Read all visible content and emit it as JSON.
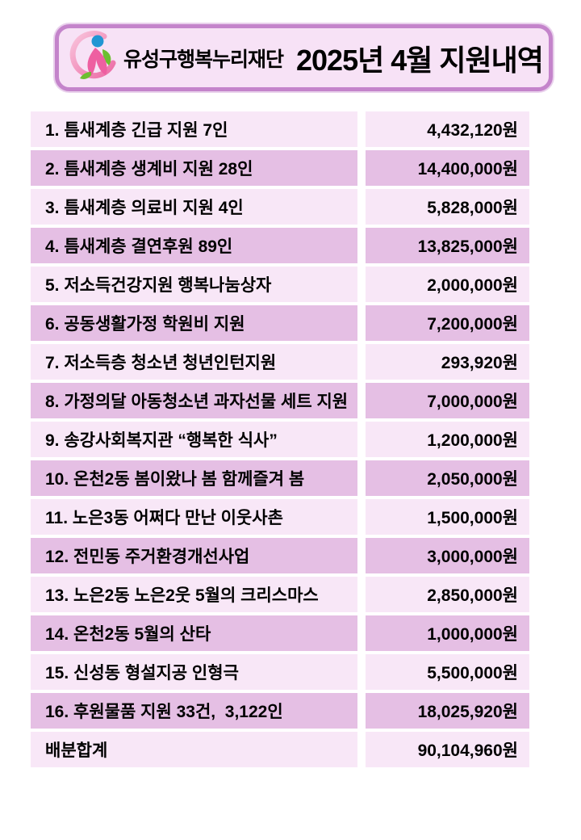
{
  "header": {
    "org_name": "유성구행복누리재단",
    "title": "2025년 4월 지원내역",
    "logo_name": "happiness-nuri-foundation-logo"
  },
  "colors": {
    "page_bg": "#ffffff",
    "header_fill": "#f7e2f6",
    "header_border": "#c484cb",
    "header_glow": "#e9d1ec",
    "row_light": "#f8e7f7",
    "row_dark": "#e5bfe4",
    "text": "#000000",
    "logo_head": "#2196d3",
    "logo_body": "#ee5fa1",
    "logo_leaf": "#6cbf2f",
    "logo_ring_light": "#f9c4dc",
    "logo_ring_dark": "#ec6ba5"
  },
  "table": {
    "rows": [
      {
        "label": "1. 틈새계층 긴급 지원 7인",
        "amount": "4,432,120원"
      },
      {
        "label": "2. 틈새계층 생계비 지원 28인",
        "amount": "14,400,000원"
      },
      {
        "label": "3. 틈새계층 의료비 지원 4인",
        "amount": "5,828,000원"
      },
      {
        "label": "4. 틈새계층 결연후원 89인",
        "amount": "13,825,000원"
      },
      {
        "label": "5. 저소득건강지원 행복나눔상자",
        "amount": "2,000,000원"
      },
      {
        "label": "6. 공동생활가정 학원비 지원",
        "amount": "7,200,000원"
      },
      {
        "label": "7. 저소득층 청소년 청년인턴지원",
        "amount": "293,920원"
      },
      {
        "label": "8. 가정의달 아동청소년 과자선물 세트 지원",
        "amount": "7,000,000원"
      },
      {
        "label": "9. 송강사회복지관 “행복한 식사”",
        "amount": "1,200,000원"
      },
      {
        "label": "10. 온천2동 봄이왔나 봄 함께즐겨 봄",
        "amount": "2,050,000원"
      },
      {
        "label": "11. 노은3동 어쩌다 만난 이웃사촌",
        "amount": "1,500,000원"
      },
      {
        "label": "12. 전민동 주거환경개선사업",
        "amount": "3,000,000원"
      },
      {
        "label": "13. 노은2동 노은2웃 5월의 크리스마스",
        "amount": "2,850,000원"
      },
      {
        "label": "14. 온천2동 5월의 산타",
        "amount": "1,000,000원"
      },
      {
        "label": "15. 신성동 형설지공 인형극",
        "amount": "5,500,000원"
      },
      {
        "label": "16. 후원물품 지원 33건,  3,122인",
        "amount": "18,025,920원"
      },
      {
        "label": "배분합계",
        "amount": "90,104,960원",
        "is_total": true
      }
    ]
  }
}
